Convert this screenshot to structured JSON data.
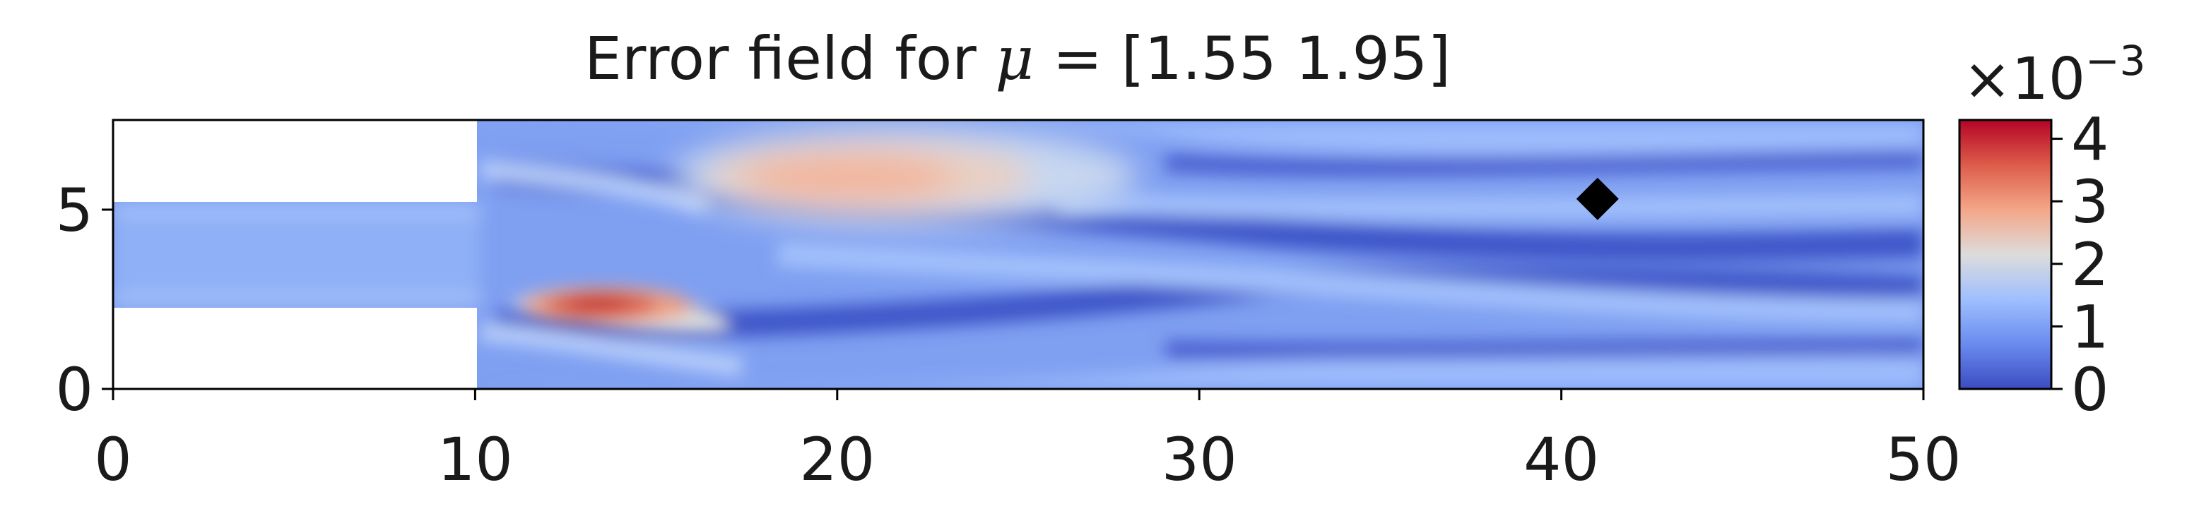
{
  "chart_data": {
    "type": "heatmap",
    "title": {
      "prefix": "Error field for ",
      "symbol": "μ",
      "suffix": " = [1.55 1.95]"
    },
    "xlabel": "",
    "ylabel": "",
    "xlim": [
      0,
      50
    ],
    "ylim": [
      0,
      7.5
    ],
    "x_ticks": [
      0,
      10,
      20,
      30,
      40,
      50
    ],
    "y_ticks": [
      0,
      5
    ],
    "grid": false,
    "colormap": "coolwarm",
    "colorbar": {
      "range": [
        0,
        0.0043
      ],
      "ticks": [
        0,
        1,
        2,
        3,
        4
      ],
      "multiplier": {
        "base": "×10",
        "exponent": "−3"
      },
      "colors": [
        "#3b4cc0",
        "#6a8bef",
        "#9fbffe",
        "#dddcdb",
        "#f4a688",
        "#dd5c4a",
        "#b40426"
      ]
    },
    "domain": {
      "inlet_channel": {
        "x": [
          0,
          10
        ],
        "y": [
          2.25,
          5.25
        ]
      },
      "main_channel": {
        "x": [
          10,
          50
        ],
        "y": [
          0,
          7.5
        ]
      }
    },
    "hotspots": [
      {
        "x": 14,
        "y": 2.2,
        "value": 0.0043
      },
      {
        "x": 22,
        "y": 5.9,
        "value": 0.0027
      }
    ],
    "marker": {
      "shape": "diamond",
      "x": 41,
      "y": 5.3,
      "color": "#000000"
    }
  }
}
